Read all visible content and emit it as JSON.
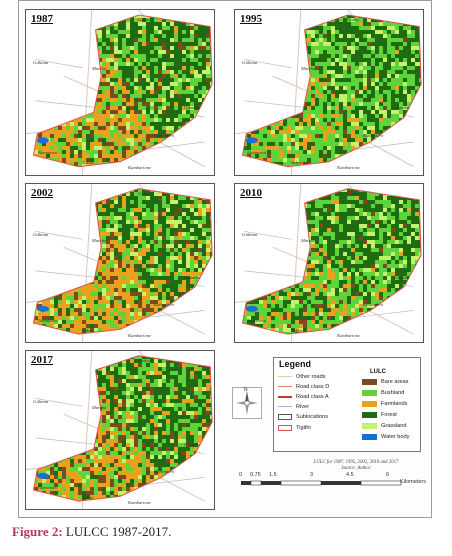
{
  "maps": [
    {
      "year": "1987",
      "places": {
        "gatitu": "Gatitu",
        "githima": "Githima",
        "marcha": "Marcha",
        "gitumba": "Gitumba",
        "kahendero": "Kahendero",
        "naromoru": "Naromoru",
        "sukoti": "Sukoti",
        "kambarione": "Kambarione"
      }
    },
    {
      "year": "1995",
      "places": {
        "gatitu": "Gatitu",
        "githima": "Githima",
        "marcha": "Marcha",
        "gitumba": "Gitumba",
        "kahendero": "Kahendero",
        "naromoru": "Naromoru",
        "sukoti": "Sukoti",
        "kambarione": "Kambarione"
      }
    },
    {
      "year": "2002",
      "places": {
        "gatitu": "Gatitu",
        "githima": "Githima",
        "marcha": "Marcha",
        "gitumba": "Gitumba",
        "kahendero": "Kahendero",
        "naromoru": "Naromoru",
        "sukoti": "Sukoti",
        "kambarione": "Kambarione"
      }
    },
    {
      "year": "2010",
      "places": {
        "gatitu": "Gatitu",
        "githima": "Githima",
        "marcha": "Marcha",
        "gitumba": "Gitumba",
        "kahendero": "Kahendero",
        "naromoru": "Naromoru",
        "sukoti": "Sukoti",
        "kambarione": "Kambarione"
      }
    },
    {
      "year": "2017",
      "places": {
        "gatitu": "Gatitu",
        "githima": "Githima",
        "marcha": "Marcha",
        "gitumba": "Gitumba",
        "kahendero": "Kahendero",
        "naromoru": "Naromoru",
        "sukoti": "Sukoti",
        "kambarione": "Kambarione"
      }
    }
  ],
  "legend": {
    "title": "Legend",
    "lulc_heading": "LULC",
    "lines": [
      {
        "label": "Other roads",
        "color": "#e6c9a8",
        "style": "line"
      },
      {
        "label": "Road class D",
        "color": "#d9806e",
        "style": "line"
      },
      {
        "label": "Road class A",
        "color": "#c0392b",
        "style": "line"
      },
      {
        "label": "River",
        "color": "#c8a8d8",
        "style": "line"
      },
      {
        "label": "Sublocations",
        "color": "#555555",
        "style": "box"
      },
      {
        "label": "Tigithi",
        "color": "#e05050",
        "style": "box"
      }
    ],
    "classes": [
      {
        "label": "Bare areas",
        "color": "#7b4a1e"
      },
      {
        "label": "Bushland",
        "color": "#5ed33a"
      },
      {
        "label": "Farmlands",
        "color": "#e9a21d"
      },
      {
        "label": "Forest",
        "color": "#1f6b12"
      },
      {
        "label": "Grassland",
        "color": "#c4f26d"
      },
      {
        "label": "Water body",
        "color": "#1a6fd6"
      }
    ]
  },
  "compass": {
    "north_label": "N"
  },
  "credit": {
    "line1": "LULC for 1987, 1995, 2002, 2010 and 2017",
    "line2": "Source: Author"
  },
  "scale": {
    "ticks": [
      "0",
      "0.75",
      "1.5",
      "3",
      "4.5",
      "6"
    ],
    "unit": "Kilometers"
  },
  "caption": {
    "label": "Figure 2:",
    "text": "LULCC 1987-2017."
  }
}
